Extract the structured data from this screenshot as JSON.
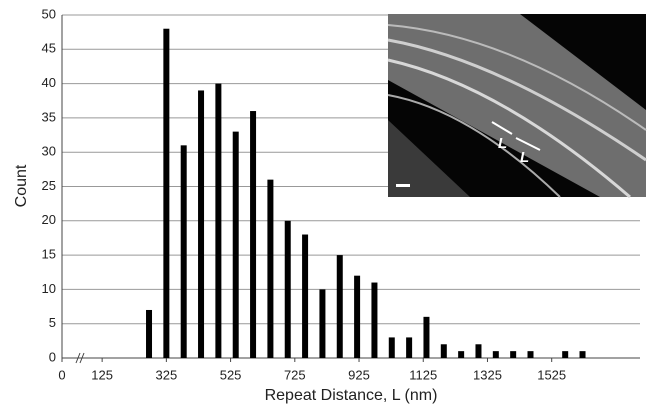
{
  "chart_data": {
    "type": "bar",
    "xlabel": "Repeat Distance, L (nm)",
    "ylabel": "Count",
    "x": [
      271,
      325,
      379,
      433,
      487,
      541,
      595,
      649,
      703,
      757,
      811,
      865,
      919,
      973,
      1027,
      1081,
      1135,
      1189,
      1243,
      1297,
      1351,
      1405,
      1459,
      1567,
      1621
    ],
    "values": [
      7,
      48,
      31,
      39,
      40,
      33,
      36,
      26,
      20,
      18,
      10,
      15,
      12,
      11,
      3,
      3,
      6,
      2,
      1,
      2,
      1,
      1,
      1,
      1,
      1
    ],
    "color": "#000000",
    "xlim": [
      0,
      1800
    ],
    "xticks": [
      0,
      125,
      325,
      525,
      725,
      925,
      1125,
      1325,
      1525
    ],
    "ylim": [
      0,
      50
    ],
    "yticks": [
      0,
      5,
      10,
      15,
      20,
      25,
      30,
      35,
      40,
      45,
      50
    ],
    "grid": true,
    "inset_annotations": [
      "L",
      "L"
    ]
  }
}
